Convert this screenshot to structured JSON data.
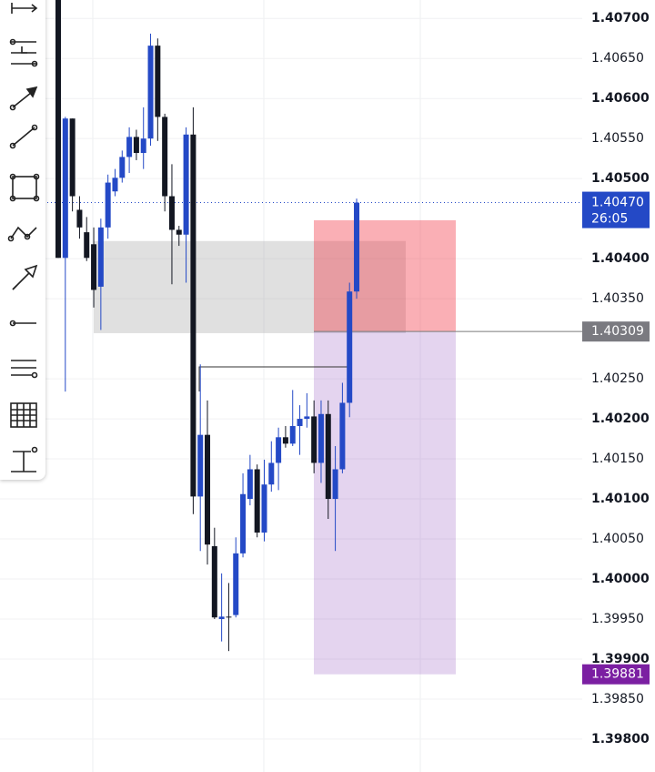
{
  "chart_data": {
    "type": "candlestick",
    "up_color": "#2449c6",
    "down_color": "#131722",
    "ylim": [
      1.39759,
      1.40723
    ],
    "yticks": [
      {
        "value": 1.407,
        "label": "1.40700"
      },
      {
        "value": 1.4065,
        "label": "1.40650"
      },
      {
        "value": 1.406,
        "label": "1.40600"
      },
      {
        "value": 1.4055,
        "label": "1.40550"
      },
      {
        "value": 1.405,
        "label": "1.40500"
      },
      {
        "value": 1.404,
        "label": "1.40400"
      },
      {
        "value": 1.4035,
        "label": "1.40350"
      },
      {
        "value": 1.4025,
        "label": "1.40250"
      },
      {
        "value": 1.402,
        "label": "1.40200"
      },
      {
        "value": 1.4015,
        "label": "1.40150"
      },
      {
        "value": 1.401,
        "label": "1.40100"
      },
      {
        "value": 1.4005,
        "label": "1.40050"
      },
      {
        "value": 1.4,
        "label": "1.40000"
      },
      {
        "value": 1.3995,
        "label": "1.39950"
      },
      {
        "value": 1.399,
        "label": "1.39900"
      },
      {
        "value": 1.3985,
        "label": "1.39850"
      },
      {
        "value": 1.398,
        "label": "1.39800"
      }
    ],
    "grid": true,
    "open": [
      1.40723,
      1.40401,
      1.40575,
      1.40461,
      1.40433,
      1.40418,
      1.40365,
      1.40439,
      1.40484,
      1.40501,
      1.40527,
      1.40552,
      1.40532,
      1.4055,
      1.40666,
      1.40577,
      1.40478,
      1.40436,
      1.4043,
      1.40555,
      1.40103,
      1.4018,
      1.40041,
      1.3995,
      1.39953,
      1.39955,
      1.40032,
      1.401,
      1.40137,
      1.40058,
      1.40118,
      1.40145,
      1.40177,
      1.40169,
      1.40191,
      1.402,
      1.40203,
      1.40145,
      1.40206,
      1.401,
      1.40137,
      1.4022,
      1.40359
    ],
    "high": [
      1.4074,
      1.40577,
      1.40575,
      1.40478,
      1.40452,
      1.40439,
      1.4045,
      1.40505,
      1.40512,
      1.40535,
      1.40564,
      1.40561,
      1.40589,
      1.40681,
      1.40675,
      1.40581,
      1.40518,
      1.40441,
      1.40564,
      1.40589,
      1.40268,
      1.40223,
      1.40064,
      1.40007,
      1.39995,
      1.40052,
      1.40132,
      1.40155,
      1.40143,
      1.40149,
      1.40172,
      1.40189,
      1.40191,
      1.40236,
      1.40217,
      1.40232,
      1.40223,
      1.40223,
      1.40223,
      1.40166,
      1.40245,
      1.4037,
      1.40475
    ],
    "low": [
      1.40401,
      1.40234,
      1.40459,
      1.40425,
      1.40397,
      1.40339,
      1.40311,
      1.40425,
      1.40478,
      1.40495,
      1.40507,
      1.40523,
      1.40512,
      1.40541,
      1.40547,
      1.40459,
      1.40368,
      1.40416,
      1.4037,
      1.40081,
      1.40035,
      1.40018,
      1.3995,
      1.39922,
      1.3991,
      1.39952,
      1.40027,
      1.40092,
      1.40052,
      1.40047,
      1.40109,
      1.40111,
      1.40164,
      1.40166,
      1.40155,
      1.40189,
      1.40132,
      1.4012,
      1.40075,
      1.40035,
      1.40132,
      1.40202,
      1.4035
    ],
    "close": [
      1.40401,
      1.40575,
      1.40478,
      1.40439,
      1.40401,
      1.40361,
      1.40439,
      1.40495,
      1.40501,
      1.40527,
      1.40552,
      1.40532,
      1.4055,
      1.40666,
      1.40577,
      1.40478,
      1.40436,
      1.4043,
      1.40555,
      1.40103,
      1.4018,
      1.40043,
      1.39952,
      1.39953,
      1.39952,
      1.40032,
      1.40106,
      1.40137,
      1.40058,
      1.40118,
      1.40145,
      1.40177,
      1.40169,
      1.40191,
      1.402,
      1.40203,
      1.40145,
      1.40206,
      1.401,
      1.40137,
      1.4022,
      1.40359,
      1.4047
    ],
    "current_price": {
      "value": 1.4047,
      "label": "1.40470"
    },
    "countdown": "26:05",
    "zone": {
      "top": 1.40422,
      "bottom": 1.40307
    },
    "position": {
      "entry": 1.40309,
      "stop": 1.40448,
      "target": 1.39881
    }
  }
}
